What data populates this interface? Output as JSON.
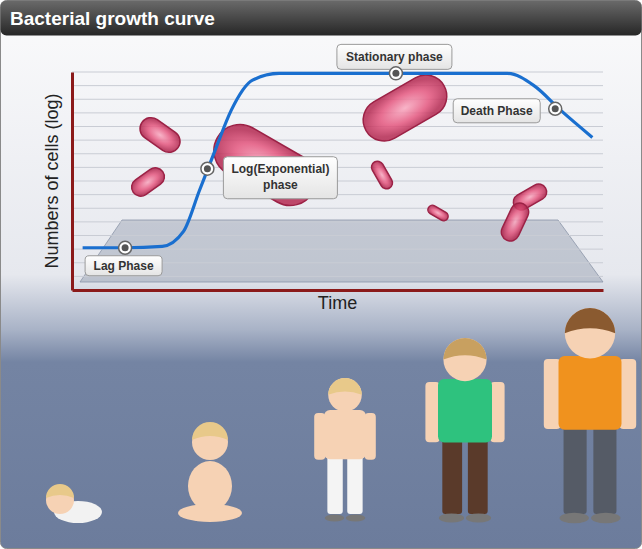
{
  "chart_data": {
    "type": "line",
    "title": "Bacterial growth curve",
    "x_label": "Time",
    "y_label": "Numbers of cells (log)",
    "x": [
      0.2,
      1.0,
      1.7,
      2.1,
      2.4,
      2.7,
      3.0,
      3.4,
      3.9,
      6.0,
      8.2,
      8.7,
      9.2,
      9.8
    ],
    "values": [
      3.1,
      3.1,
      3.2,
      4.3,
      7.3,
      10.3,
      13.2,
      15.4,
      15.9,
      15.9,
      15.9,
      15.0,
      13.2,
      11.2
    ],
    "color": "#1a6fcf",
    "xlim": [
      0,
      10
    ],
    "ylim": [
      0,
      16
    ],
    "yticks": [
      0,
      1,
      2,
      3,
      4,
      5,
      6,
      7,
      8,
      9,
      10,
      11,
      12,
      13,
      14,
      15,
      16
    ],
    "grid": true,
    "tick_labels": false,
    "annotations": [
      {
        "text": "Lag Phase",
        "x": 1.0,
        "y": 3.1
      },
      {
        "text": "Log(Exponential) phase",
        "x": 2.55,
        "y": 8.9
      },
      {
        "text": "Stationary phase",
        "x": 6.1,
        "y": 15.9
      },
      {
        "text": "Death Phase",
        "x": 9.1,
        "y": 13.3
      }
    ]
  }
}
